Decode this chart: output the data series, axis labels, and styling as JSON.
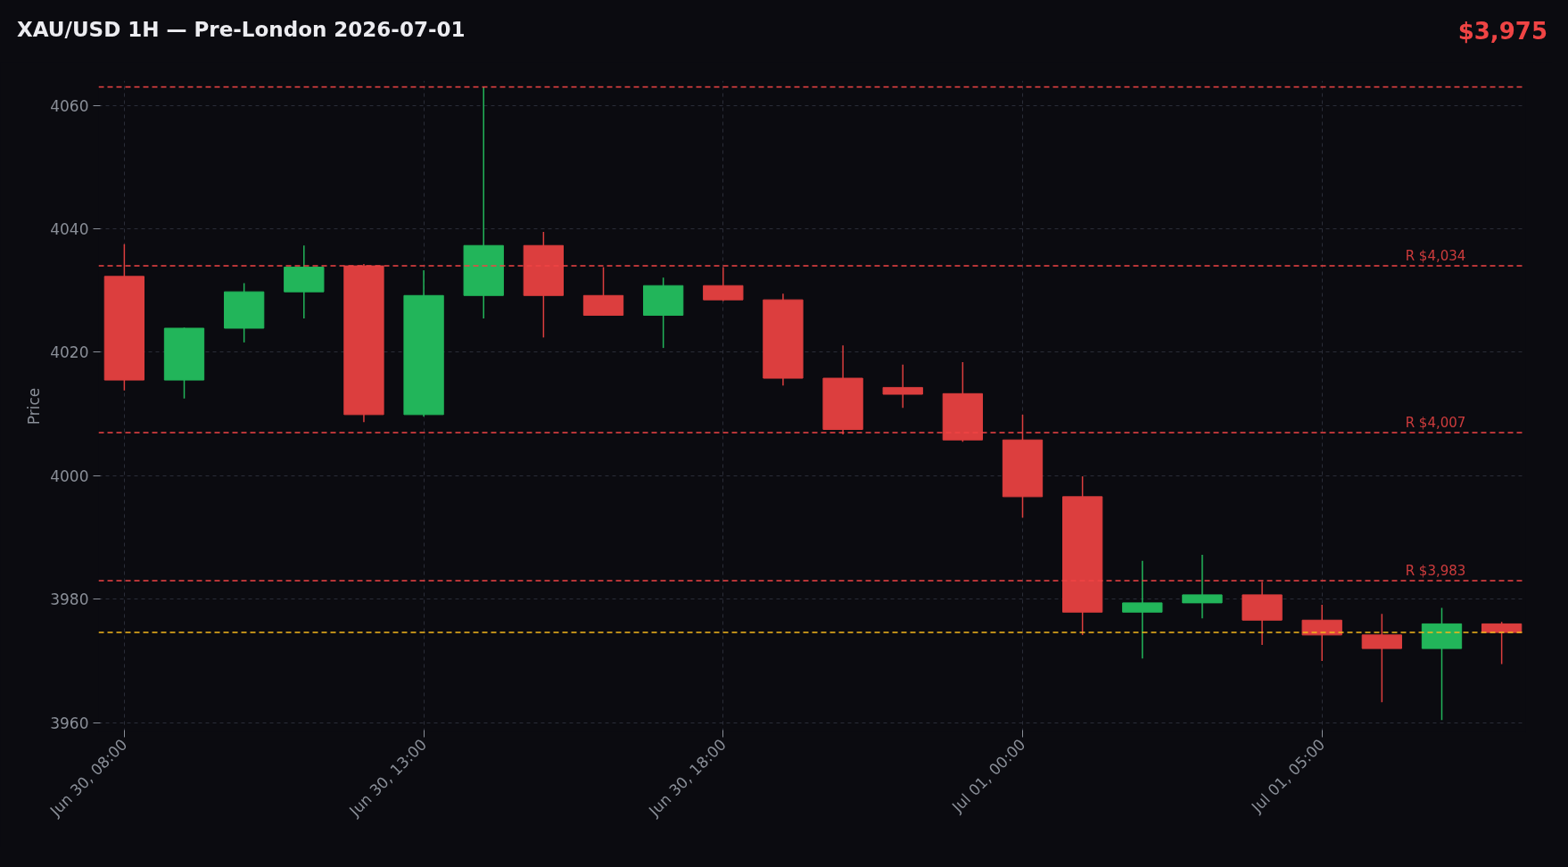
{
  "chart_data": {
    "type": "candlestick",
    "title": "XAU/USD 1H — Pre-London 2026-07-01",
    "ylabel": "Price",
    "annotations": [
      "$3,975"
    ],
    "categories": [
      "Jun 30, 08:00",
      null,
      null,
      null,
      null,
      "Jun 30, 13:00",
      null,
      null,
      null,
      null,
      "Jun 30, 18:00",
      null,
      null,
      null,
      null,
      "Jul 01, 00:00",
      null,
      null,
      null,
      null,
      "Jul 01, 05:00",
      null,
      null,
      null
    ],
    "ohlc": [
      [
        4032.3,
        4037.5,
        4013.8,
        4015.5
      ],
      [
        4015.5,
        4024.0,
        4012.5,
        4023.9
      ],
      [
        4023.9,
        4031.2,
        4021.6,
        4029.8
      ],
      [
        4029.8,
        4037.3,
        4025.5,
        4033.8
      ],
      [
        4034.0,
        4034.3,
        4008.7,
        4009.9
      ],
      [
        4009.9,
        4033.3,
        4009.6,
        4029.2
      ],
      [
        4029.2,
        4063.0,
        4025.5,
        4037.3
      ],
      [
        4037.3,
        4039.5,
        4022.4,
        4029.2
      ],
      [
        4029.2,
        4033.8,
        4026.0,
        4026.0
      ],
      [
        4026.0,
        4032.1,
        4020.7,
        4030.8
      ],
      [
        4030.8,
        4033.8,
        4028.3,
        4028.5
      ],
      [
        4028.5,
        4029.5,
        4014.6,
        4015.8
      ],
      [
        4015.8,
        4021.1,
        4006.7,
        4007.5
      ],
      [
        4014.3,
        4018.0,
        4011.0,
        4013.2
      ],
      [
        4013.3,
        4018.4,
        4005.5,
        4005.8
      ],
      [
        4005.8,
        4009.9,
        3993.2,
        3996.6
      ],
      [
        3996.6,
        3999.9,
        3974.2,
        3977.9
      ],
      [
        3977.9,
        3986.2,
        3970.4,
        3979.4
      ],
      [
        3979.4,
        3987.2,
        3976.9,
        3980.7
      ],
      [
        3980.7,
        3982.8,
        3972.6,
        3976.6
      ],
      [
        3976.6,
        3979.1,
        3970.0,
        3974.2
      ],
      [
        3974.2,
        3977.6,
        3963.3,
        3972.0
      ],
      [
        3972.0,
        3978.6,
        3960.4,
        3976.0
      ],
      [
        3976.0,
        3976.3,
        3969.5,
        3974.6
      ]
    ],
    "colors": [
      "#dc3e3e",
      "#22b55a",
      "#22b55a",
      "#22b55a",
      "#dc3e3e",
      "#22b55a",
      "#22b55a",
      "#dc3e3e",
      "#dc3e3e",
      "#22b55a",
      "#dc3e3e",
      "#dc3e3e",
      "#dc3e3e",
      "#dc3e3e",
      "#dc3e3e",
      "#dc3e3e",
      "#dc3e3e",
      "#22b55a",
      "#22b55a",
      "#dc3e3e",
      "#dc3e3e",
      "#dc3e3e",
      "#22b55a",
      "#dc3e3e"
    ],
    "ylim": [
      3958.5,
      4064
    ],
    "yticks": [
      3960,
      3980,
      4000,
      4020,
      4040,
      4060
    ],
    "grid": true,
    "ref_lines": [
      {
        "axis": "y",
        "value": 4063,
        "label": null,
        "color": "#ef4444",
        "line_style": "dashed"
      },
      {
        "axis": "y",
        "value": 4034,
        "label": "R $4,034",
        "color": "#ef4444",
        "line_style": "dashed"
      },
      {
        "axis": "y",
        "value": 4007,
        "label": "R $4,007",
        "color": "#ef4444",
        "line_style": "dashed"
      },
      {
        "axis": "y",
        "value": 3983,
        "label": "R $3,983",
        "color": "#ef4444",
        "line_style": "dashed"
      },
      {
        "axis": "y",
        "value": 3974.6,
        "label": null,
        "color": "#f5b81c",
        "line_style": "dashed"
      }
    ]
  }
}
